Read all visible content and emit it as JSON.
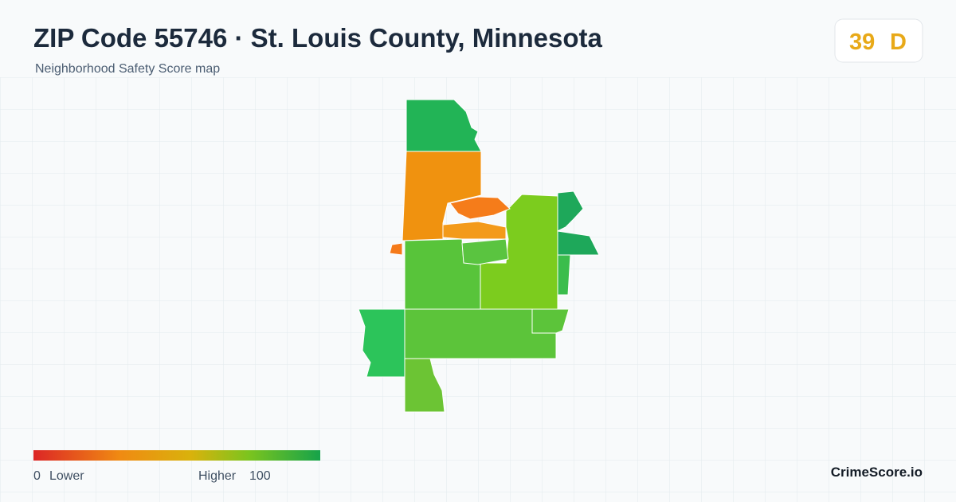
{
  "header": {
    "title": "ZIP Code 55746 · St. Louis County, Minnesota",
    "subtitle": "Neighborhood Safety Score map"
  },
  "badge": {
    "score": "39",
    "grade": "D"
  },
  "legend": {
    "min": "0",
    "low_label": "Lower",
    "high_label": "Higher",
    "max": "100"
  },
  "footer": {
    "brand": "CrimeScore.io"
  }
}
